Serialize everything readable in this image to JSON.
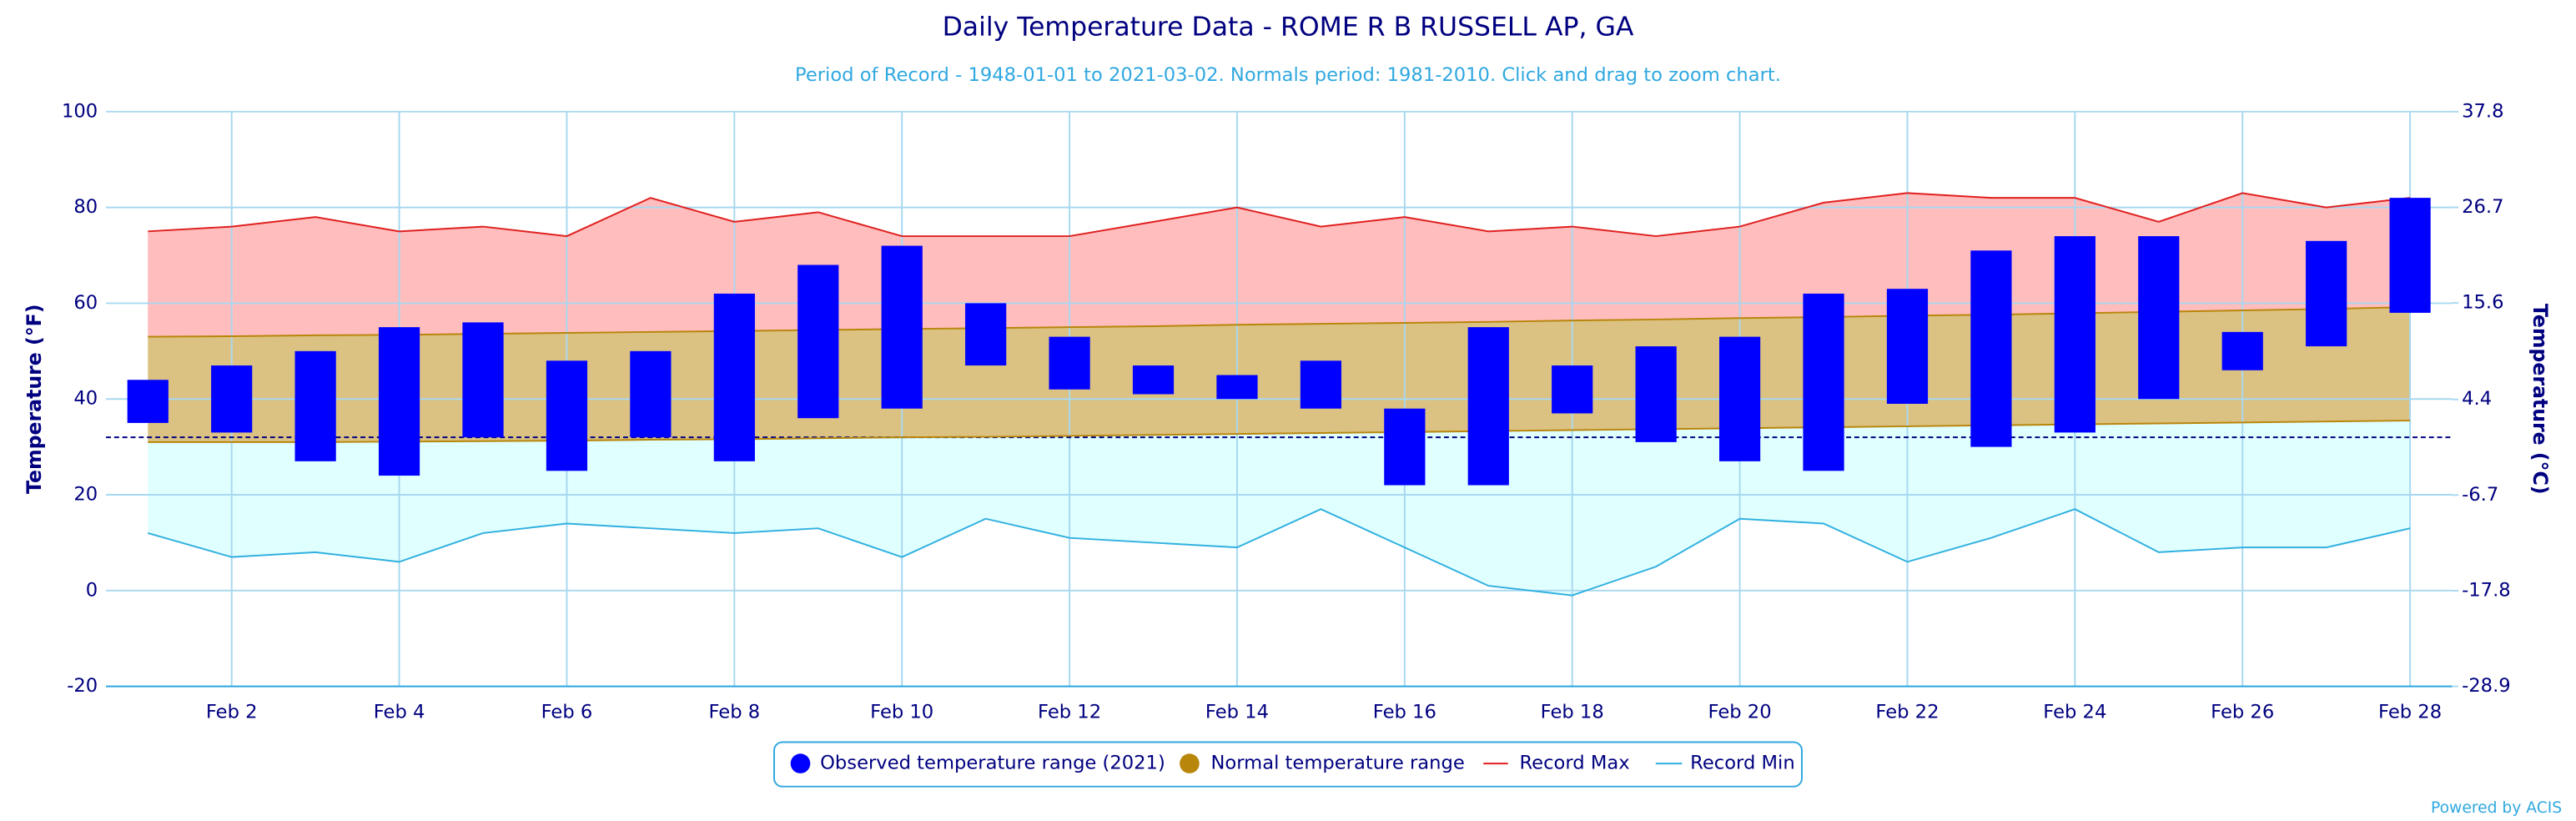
{
  "chart_data": {
    "type": "temperature-range",
    "title": "Daily Temperature Data - ROME R B RUSSELL AP, GA",
    "subtitle": "Period of Record - 1948-01-01 to 2021-03-02. Normals period: 1981-2010. Click and drag to zoom chart.",
    "y_label": "Temperature (°F)",
    "y2_label": "Temperature (°C)",
    "credits": "Powered by ACIS",
    "categories": [
      null,
      "Feb 2",
      null,
      "Feb 4",
      null,
      "Feb 6",
      null,
      "Feb 8",
      null,
      "Feb 10",
      null,
      "Feb 12",
      null,
      "Feb 14",
      null,
      "Feb 16",
      null,
      "Feb 18",
      null,
      "Feb 20",
      null,
      "Feb 22",
      null,
      "Feb 24",
      null,
      "Feb 26",
      null,
      "Feb 28"
    ],
    "ylim": [
      -20,
      100
    ],
    "yticks": [
      -20,
      0,
      20,
      40,
      60,
      80,
      100
    ],
    "y2lim": [
      -28.9,
      37.8
    ],
    "y2ticks": [
      -28.9,
      -17.8,
      -6.7,
      4.4,
      15.6,
      26.7,
      37.8
    ],
    "grid": true,
    "freezing_line": 32,
    "legend": "bottom",
    "series": [
      {
        "name": "Observed temperature range (2021)",
        "color": "#0000ff",
        "low": [
          35,
          33,
          27,
          24,
          32,
          25,
          32,
          27,
          36,
          38,
          47,
          42,
          41,
          40,
          38,
          22,
          22,
          37,
          31,
          27,
          25,
          39,
          30,
          33,
          40,
          46,
          51,
          58
        ],
        "high": [
          44,
          47,
          50,
          55,
          56,
          48,
          50,
          62,
          68,
          72,
          60,
          53,
          47,
          45,
          48,
          38,
          55,
          47,
          51,
          53,
          62,
          63,
          71,
          74,
          74,
          54,
          73,
          82
        ]
      },
      {
        "name": "Normal temperature range",
        "color": "#b8860b",
        "fill": "#dcc282",
        "low": [
          31,
          31,
          31,
          31.1,
          31.2,
          31.3,
          31.5,
          31.6,
          31.8,
          32,
          32.1,
          32.3,
          32.5,
          32.7,
          32.9,
          33.1,
          33.3,
          33.5,
          33.7,
          33.9,
          34.1,
          34.3,
          34.5,
          34.7,
          34.9,
          35.1,
          35.3,
          35.5
        ],
        "high": [
          53,
          53.1,
          53.3,
          53.4,
          53.6,
          53.8,
          54,
          54.2,
          54.4,
          54.6,
          54.8,
          55,
          55.2,
          55.5,
          55.7,
          55.9,
          56.1,
          56.4,
          56.6,
          56.9,
          57.1,
          57.4,
          57.6,
          57.9,
          58.2,
          58.5,
          58.8,
          59.2
        ]
      },
      {
        "name": "Record Max",
        "color": "#e02020",
        "fill": "#ffbdbd",
        "values": [
          75,
          76,
          78,
          75,
          76,
          74,
          82,
          77,
          79,
          74,
          74,
          74,
          77,
          80,
          76,
          78,
          75,
          76,
          74,
          76,
          81,
          83,
          82,
          82,
          77,
          83,
          80,
          82
        ]
      },
      {
        "name": "Record Min",
        "color": "#30b0e0",
        "fill": "#e0ffff",
        "values": [
          12,
          7,
          8,
          6,
          12,
          14,
          13,
          12,
          13,
          7,
          15,
          11,
          10,
          9,
          17,
          9,
          1,
          -1,
          5,
          15,
          14,
          6,
          11,
          17,
          8,
          9,
          9,
          13
        ]
      }
    ]
  }
}
